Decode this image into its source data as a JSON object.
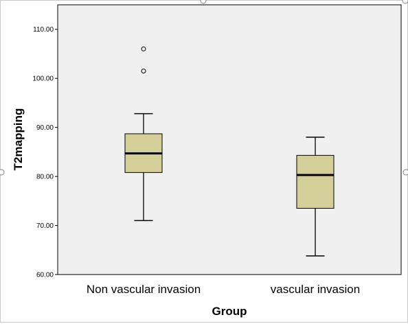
{
  "chart_data": {
    "type": "boxplot",
    "title": "",
    "xlabel": "Group",
    "ylabel": "T2mapping",
    "ylim": [
      60,
      115
    ],
    "yticks": [
      60,
      70,
      80,
      90,
      100,
      110
    ],
    "ytick_labels": [
      "60.00",
      "70.00",
      "80.00",
      "90.00",
      "100.00",
      "110.00"
    ],
    "categories": [
      "Non vascular invasion",
      "vascular invasion"
    ],
    "boxes": [
      {
        "category": "Non vascular invasion",
        "whisker_low": 71.0,
        "q1": 80.8,
        "median": 84.7,
        "q3": 88.7,
        "whisker_high": 92.8,
        "outliers": [
          101.5,
          106.0
        ]
      },
      {
        "category": "vascular invasion",
        "whisker_low": 63.8,
        "q1": 73.5,
        "median": 80.3,
        "q3": 84.3,
        "whisker_high": 88.0,
        "outliers": []
      }
    ],
    "grid": false,
    "legend": "none",
    "colors": {
      "plot_background": "#f0f0f0",
      "box_fill": "#d4cf98",
      "line": "#000000"
    }
  }
}
